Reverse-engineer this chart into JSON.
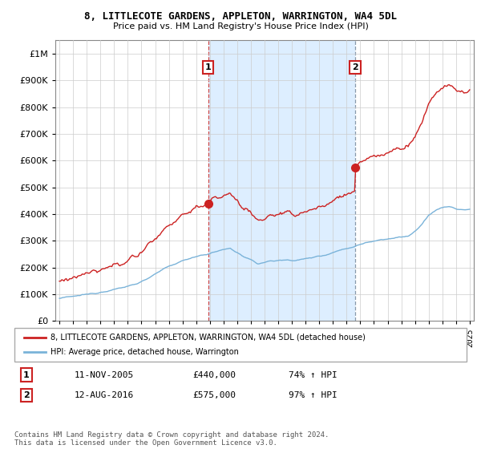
{
  "title": "8, LITTLECOTE GARDENS, APPLETON, WARRINGTON, WA4 5DL",
  "subtitle": "Price paid vs. HM Land Registry's House Price Index (HPI)",
  "legend_line1": "8, LITTLECOTE GARDENS, APPLETON, WARRINGTON, WA4 5DL (detached house)",
  "legend_line2": "HPI: Average price, detached house, Warrington",
  "annotation1_label": "1",
  "annotation1_date": "11-NOV-2005",
  "annotation1_price": 440000,
  "annotation1_hpi": "74% ↑ HPI",
  "annotation2_label": "2",
  "annotation2_date": "12-AUG-2016",
  "annotation2_price": 575000,
  "annotation2_hpi": "97% ↑ HPI",
  "footnote": "Contains HM Land Registry data © Crown copyright and database right 2024.\nThis data is licensed under the Open Government Licence v3.0.",
  "hpi_color": "#7ab3d9",
  "price_color": "#cc2222",
  "annotation1_vline_color": "#cc4444",
  "annotation2_vline_color": "#8899aa",
  "shading_color": "#ddeeff",
  "grid_color": "#cccccc",
  "background_color": "#ffffff",
  "ylim": [
    0,
    1000000
  ],
  "x_start_year": 1995,
  "x_end_year": 2025,
  "t1": 2005.875,
  "t2": 2016.625
}
